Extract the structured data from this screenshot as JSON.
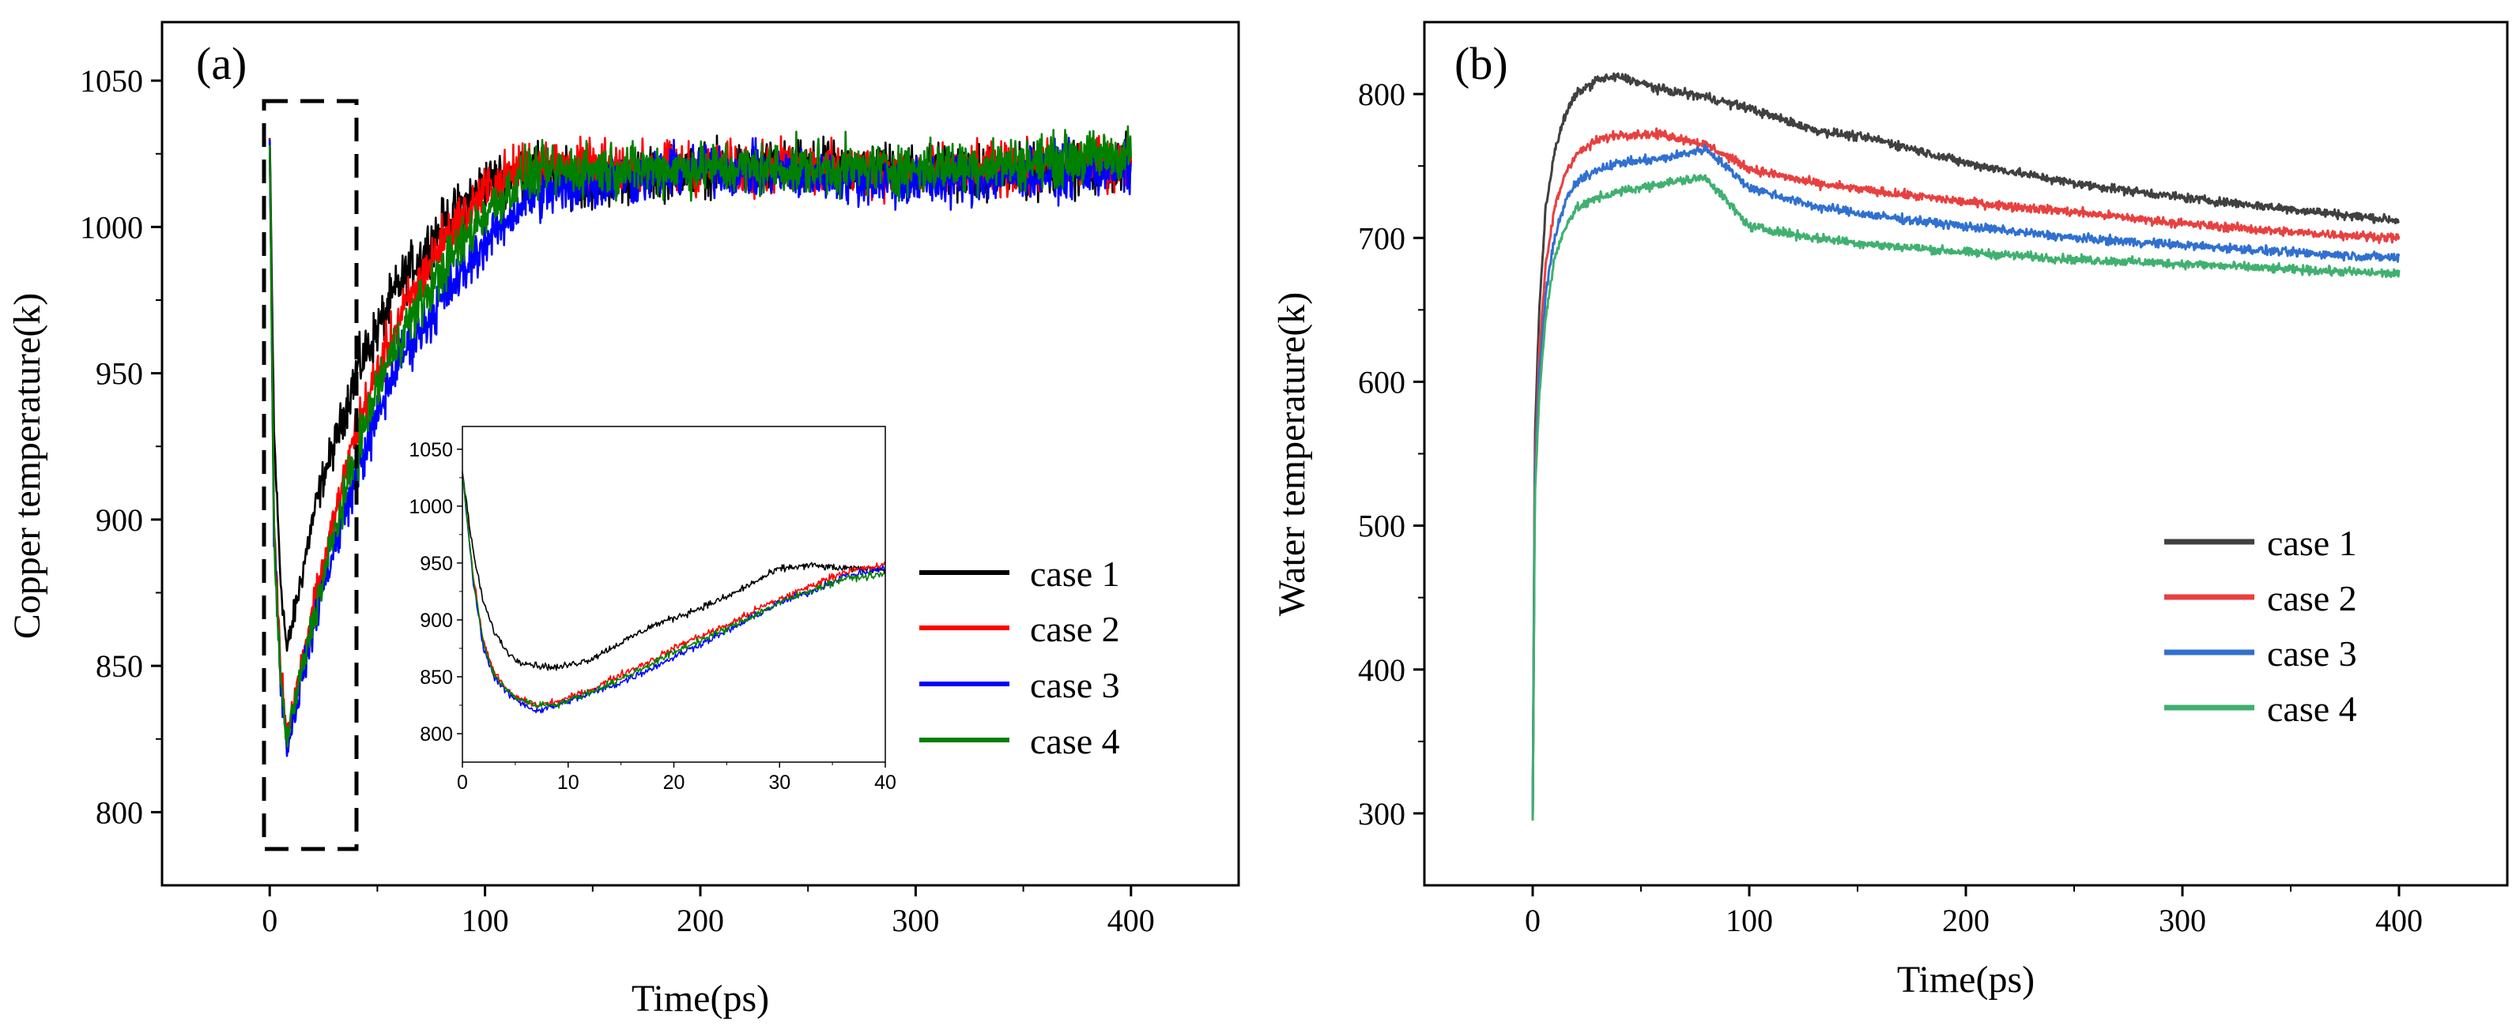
{
  "chart_data": [
    {
      "panel_label": "(a)",
      "type": "line",
      "xlabel": "Time(ps)",
      "ylabel": "Copper temperature(k)",
      "xlim": [
        -50,
        450
      ],
      "ylim": [
        775,
        1070
      ],
      "xticks": [
        "0",
        "100",
        "200",
        "300",
        "400"
      ],
      "yticks": [
        "800",
        "850",
        "900",
        "950",
        "1000",
        "1050"
      ],
      "series": [
        {
          "name": "case 1",
          "color": "#000000",
          "x": [
            0,
            2,
            5,
            8,
            12,
            16,
            20,
            25,
            30,
            40,
            50,
            60,
            80,
            100,
            120,
            150,
            200,
            250,
            300,
            350,
            400
          ],
          "values": [
            1030,
            930,
            880,
            855,
            870,
            885,
            900,
            915,
            925,
            950,
            965,
            980,
            1000,
            1015,
            1020,
            1015,
            1020,
            1020,
            1020,
            1018,
            1022
          ]
        },
        {
          "name": "case 2",
          "color": "#ff0000",
          "x": [
            0,
            2,
            5,
            8,
            12,
            16,
            20,
            25,
            30,
            40,
            50,
            60,
            80,
            100,
            120,
            150,
            200,
            250,
            300,
            350,
            400
          ],
          "values": [
            1030,
            900,
            850,
            828,
            840,
            855,
            870,
            885,
            900,
            930,
            950,
            968,
            995,
            1012,
            1022,
            1020,
            1020,
            1020,
            1018,
            1020,
            1022
          ]
        },
        {
          "name": "case 3",
          "color": "#0000ff",
          "x": [
            0,
            2,
            5,
            8,
            12,
            16,
            20,
            25,
            30,
            40,
            50,
            60,
            80,
            100,
            120,
            150,
            200,
            250,
            300,
            350,
            400
          ],
          "values": [
            1030,
            895,
            845,
            822,
            835,
            850,
            862,
            878,
            890,
            915,
            935,
            955,
            975,
            995,
            1010,
            1015,
            1020,
            1018,
            1015,
            1018,
            1020
          ]
        },
        {
          "name": "case 4",
          "color": "#008000",
          "x": [
            0,
            2,
            5,
            8,
            12,
            16,
            20,
            25,
            30,
            40,
            50,
            60,
            80,
            100,
            120,
            150,
            200,
            250,
            300,
            350,
            400
          ],
          "values": [
            1030,
            895,
            845,
            825,
            838,
            852,
            865,
            880,
            895,
            922,
            945,
            962,
            985,
            1005,
            1018,
            1020,
            1020,
            1020,
            1020,
            1022,
            1025
          ]
        }
      ],
      "inset": {
        "xlim": [
          0,
          40
        ],
        "ylim": [
          775,
          1070
        ],
        "xticks": [
          "0",
          "10",
          "20",
          "30",
          "40"
        ],
        "yticks": [
          "800",
          "850",
          "900",
          "950",
          "1000",
          "1050"
        ],
        "series": [
          {
            "name": "case 1",
            "color": "#000000",
            "x": [
              0,
              1,
              2,
              3,
              4,
              5,
              7,
              9,
              12,
              15,
              18,
              21,
              25,
              28,
              30,
              33,
              36,
              40
            ],
            "values": [
              1030,
              960,
              915,
              890,
              875,
              865,
              860,
              858,
              865,
              880,
              895,
              905,
              920,
              935,
              945,
              948,
              945,
              945
            ]
          },
          {
            "name": "case 2",
            "color": "#ff0000",
            "x": [
              0,
              1,
              2,
              3,
              4,
              5,
              7,
              9,
              12,
              15,
              18,
              21,
              25,
              28,
              30,
              33,
              36,
              40
            ],
            "values": [
              1030,
              940,
              880,
              855,
              840,
              832,
              825,
              828,
              838,
              852,
              865,
              880,
              895,
              910,
              918,
              930,
              942,
              948
            ]
          },
          {
            "name": "case 3",
            "color": "#0000ff",
            "x": [
              0,
              1,
              2,
              3,
              4,
              5,
              7,
              9,
              12,
              15,
              18,
              21,
              25,
              28,
              30,
              33,
              36,
              40
            ],
            "values": [
              1030,
              935,
              875,
              850,
              838,
              830,
              820,
              825,
              835,
              845,
              858,
              872,
              890,
              905,
              915,
              925,
              938,
              945
            ]
          },
          {
            "name": "case 4",
            "color": "#008000",
            "x": [
              0,
              1,
              2,
              3,
              4,
              5,
              7,
              9,
              12,
              15,
              18,
              21,
              25,
              28,
              30,
              33,
              36,
              40
            ],
            "values": [
              1030,
              938,
              878,
              852,
              840,
              832,
              825,
              826,
              836,
              848,
              862,
              876,
              892,
              906,
              915,
              926,
              936,
              940
            ]
          }
        ]
      }
    },
    {
      "panel_label": "(b)",
      "type": "line",
      "xlabel": "Time(ps)",
      "ylabel": "Water temperature(k)",
      "xlim": [
        -50,
        450
      ],
      "ylim": [
        250,
        850
      ],
      "xticks": [
        "0",
        "100",
        "200",
        "300",
        "400"
      ],
      "yticks": [
        "300",
        "400",
        "500",
        "600",
        "700",
        "800"
      ],
      "series": [
        {
          "name": "case 1",
          "color": "#404040",
          "x": [
            0,
            1,
            3,
            6,
            10,
            15,
            20,
            30,
            40,
            60,
            80,
            100,
            130,
            160,
            200,
            250,
            300,
            350,
            400
          ],
          "values": [
            295,
            560,
            650,
            720,
            760,
            785,
            800,
            810,
            812,
            803,
            798,
            790,
            775,
            768,
            752,
            738,
            728,
            720,
            712
          ]
        },
        {
          "name": "case 2",
          "color": "#e84040",
          "x": [
            0,
            1,
            3,
            6,
            10,
            15,
            20,
            30,
            40,
            60,
            80,
            100,
            130,
            160,
            200,
            250,
            300,
            350,
            400
          ],
          "values": [
            295,
            540,
            620,
            680,
            720,
            745,
            758,
            768,
            772,
            772,
            765,
            748,
            738,
            732,
            725,
            718,
            710,
            704,
            700
          ]
        },
        {
          "name": "case 3",
          "color": "#3070d0",
          "x": [
            0,
            1,
            3,
            6,
            10,
            15,
            20,
            30,
            40,
            60,
            80,
            100,
            130,
            160,
            200,
            250,
            300,
            350,
            400
          ],
          "values": [
            295,
            530,
            605,
            660,
            700,
            725,
            738,
            748,
            752,
            755,
            762,
            735,
            722,
            715,
            708,
            700,
            695,
            690,
            686
          ]
        },
        {
          "name": "case 4",
          "color": "#40b070",
          "x": [
            0,
            1,
            3,
            6,
            10,
            15,
            20,
            30,
            40,
            60,
            80,
            100,
            130,
            160,
            200,
            250,
            300,
            350,
            400
          ],
          "values": [
            295,
            520,
            590,
            645,
            685,
            708,
            720,
            728,
            732,
            738,
            742,
            708,
            700,
            695,
            690,
            685,
            682,
            678,
            675
          ]
        }
      ]
    }
  ]
}
